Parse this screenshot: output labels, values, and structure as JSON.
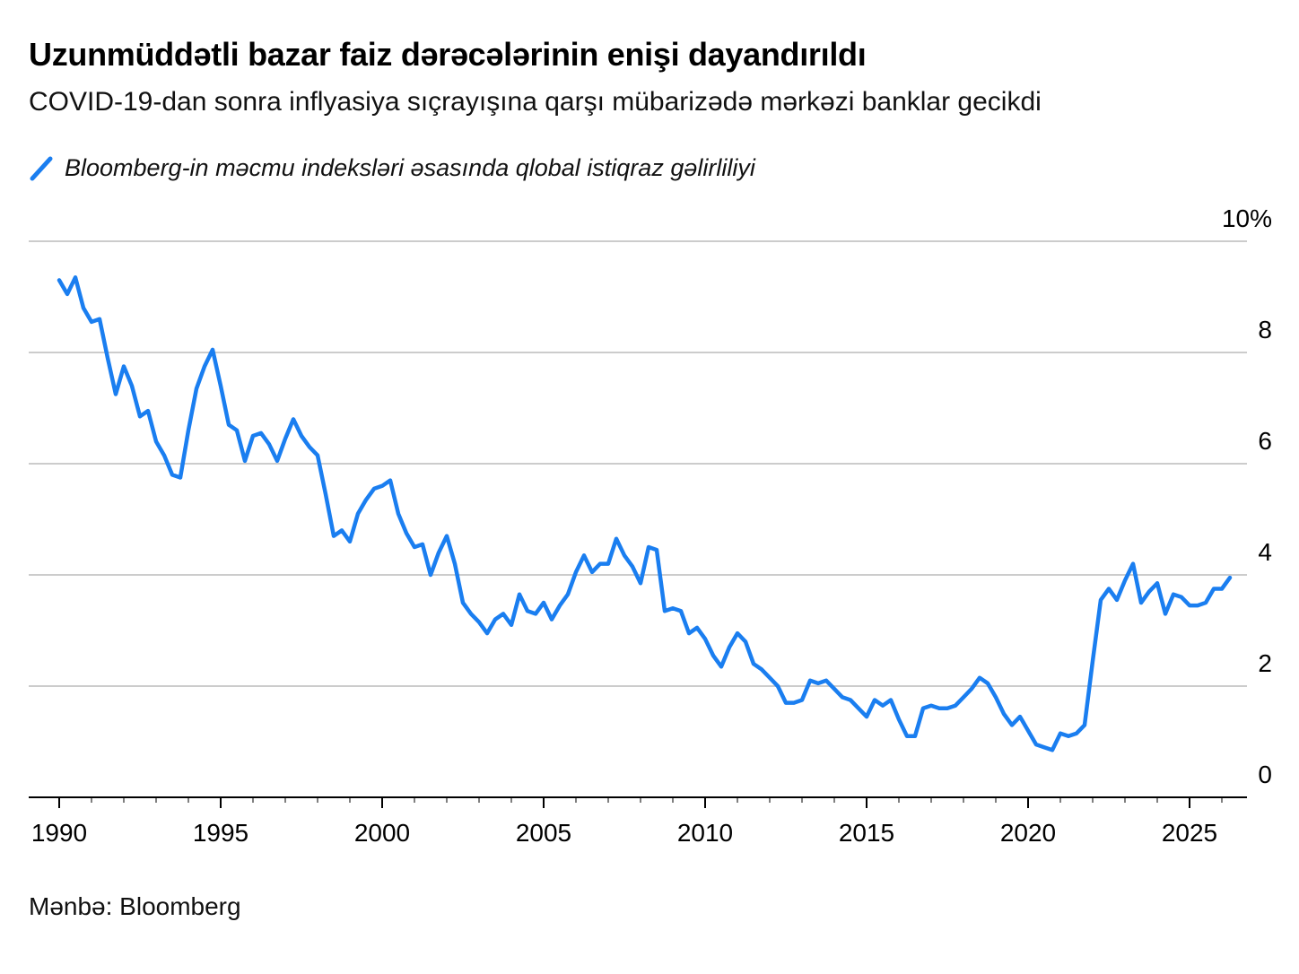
{
  "header": {
    "title": "Uzunmüddətli bazar faiz dərəcələrinin enişi dayandırıldı",
    "subtitle": "COVID-19-dan sonra inflyasiya sıçrayışına qarşı mübarizədə mərkəzi banklar gecikdi"
  },
  "legend": {
    "label": "Bloomberg-in məcmu indeksləri əsasında qlobal istiqraz gəlirliliyi"
  },
  "footer": {
    "source": "Mənbə: Bloomberg"
  },
  "colors": {
    "line": "#1a7ef0",
    "grid": "#cccccc",
    "axis": "#000000"
  },
  "chart_data": {
    "type": "line",
    "title": "Uzunmüddətli bazar faiz dərəcələrinin enişi dayandırıldı",
    "subtitle": "COVID-19-dan sonra inflyasiya sıçrayışına qarşı mübarizədə mərkəzi banklar gecikdi",
    "xlim": [
      1990,
      2027
    ],
    "ylim": [
      0,
      10
    ],
    "x_ticks": [
      1990,
      1995,
      2000,
      2005,
      2010,
      2015,
      2020,
      2025
    ],
    "x_tick_labels": [
      "1990",
      "1995",
      "2000",
      "2005",
      "2010",
      "2015",
      "2020",
      "2025"
    ],
    "y_ticks": [
      0,
      2,
      4,
      6,
      8,
      10
    ],
    "y_tick_labels": [
      "0",
      "2",
      "4",
      "6",
      "8",
      "10%"
    ],
    "grid": true,
    "legend_position": "top-left",
    "series": [
      {
        "name": "Bloomberg-in məcmu indeksləri əsasında qlobal istiqraz gəlirliliyi",
        "x": [
          1990.0,
          1990.25,
          1990.5,
          1990.75,
          1991.0,
          1991.25,
          1991.5,
          1991.75,
          1992.0,
          1992.25,
          1992.5,
          1992.75,
          1993.0,
          1993.25,
          1993.5,
          1993.75,
          1994.0,
          1994.25,
          1994.5,
          1994.75,
          1995.0,
          1995.25,
          1995.5,
          1995.75,
          1996.0,
          1996.25,
          1996.5,
          1996.75,
          1997.0,
          1997.25,
          1997.5,
          1997.75,
          1998.0,
          1998.25,
          1998.5,
          1998.75,
          1999.0,
          1999.25,
          1999.5,
          1999.75,
          2000.0,
          2000.25,
          2000.5,
          2000.75,
          2001.0,
          2001.25,
          2001.5,
          2001.75,
          2002.0,
          2002.25,
          2002.5,
          2002.75,
          2003.0,
          2003.25,
          2003.5,
          2003.75,
          2004.0,
          2004.25,
          2004.5,
          2004.75,
          2005.0,
          2005.25,
          2005.5,
          2005.75,
          2006.0,
          2006.25,
          2006.5,
          2006.75,
          2007.0,
          2007.25,
          2007.5,
          2007.75,
          2008.0,
          2008.25,
          2008.5,
          2008.75,
          2009.0,
          2009.25,
          2009.5,
          2009.75,
          2010.0,
          2010.25,
          2010.5,
          2010.75,
          2011.0,
          2011.25,
          2011.5,
          2011.75,
          2012.0,
          2012.25,
          2012.5,
          2012.75,
          2013.0,
          2013.25,
          2013.5,
          2013.75,
          2014.0,
          2014.25,
          2014.5,
          2014.75,
          2015.0,
          2015.25,
          2015.5,
          2015.75,
          2016.0,
          2016.25,
          2016.5,
          2016.75,
          2017.0,
          2017.25,
          2017.5,
          2017.75,
          2018.0,
          2018.25,
          2018.5,
          2018.75,
          2019.0,
          2019.25,
          2019.5,
          2019.75,
          2020.0,
          2020.25,
          2020.5,
          2020.75,
          2021.0,
          2021.25,
          2021.5,
          2021.75,
          2022.0,
          2022.25,
          2022.5,
          2022.75,
          2023.0,
          2023.25,
          2023.5,
          2023.75,
          2024.0,
          2024.25,
          2024.5,
          2024.75,
          2025.0,
          2025.25,
          2025.5,
          2025.75,
          2026.0,
          2026.25
        ],
        "values": [
          9.3,
          9.05,
          9.35,
          8.8,
          8.55,
          8.6,
          7.9,
          7.25,
          7.75,
          7.4,
          6.85,
          6.95,
          6.4,
          6.15,
          5.8,
          5.75,
          6.6,
          7.35,
          7.75,
          8.05,
          7.4,
          6.7,
          6.6,
          6.05,
          6.5,
          6.55,
          6.35,
          6.05,
          6.45,
          6.8,
          6.5,
          6.3,
          6.15,
          5.45,
          4.7,
          4.8,
          4.6,
          5.1,
          5.35,
          5.55,
          5.6,
          5.7,
          5.1,
          4.75,
          4.5,
          4.55,
          4.0,
          4.4,
          4.7,
          4.2,
          3.5,
          3.3,
          3.15,
          2.95,
          3.2,
          3.3,
          3.1,
          3.65,
          3.35,
          3.3,
          3.5,
          3.2,
          3.45,
          3.65,
          4.05,
          4.35,
          4.05,
          4.2,
          4.2,
          4.65,
          4.35,
          4.15,
          3.85,
          4.5,
          4.45,
          3.35,
          3.4,
          3.35,
          2.95,
          3.05,
          2.85,
          2.55,
          2.35,
          2.7,
          2.95,
          2.8,
          2.4,
          2.3,
          2.15,
          2.0,
          1.7,
          1.7,
          1.75,
          2.1,
          2.05,
          2.1,
          1.95,
          1.8,
          1.75,
          1.6,
          1.45,
          1.75,
          1.65,
          1.75,
          1.4,
          1.1,
          1.1,
          1.6,
          1.65,
          1.6,
          1.6,
          1.65,
          1.8,
          1.95,
          2.15,
          2.05,
          1.8,
          1.5,
          1.3,
          1.45,
          1.2,
          0.95,
          0.9,
          0.85,
          1.15,
          1.1,
          1.15,
          1.3,
          2.45,
          3.55,
          3.75,
          3.55,
          3.9,
          4.2,
          3.5,
          3.7,
          3.85,
          3.3,
          3.65,
          3.6,
          3.45,
          3.45,
          3.5,
          3.75,
          3.75,
          3.95
        ]
      }
    ]
  }
}
